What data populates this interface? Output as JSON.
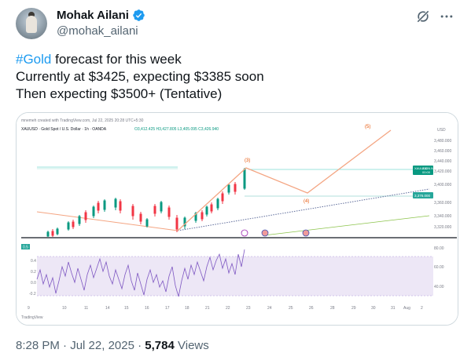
{
  "user": {
    "display_name": "Mohak Ailani",
    "handle": "@mohak_ailani",
    "verified_color": "#1d9bf0"
  },
  "header_icons": [
    "grok-icon",
    "more-icon"
  ],
  "tweet": {
    "hashtag": "#Gold",
    "line1_rest": " forecast for this week",
    "line2": "Currently at $3425, expecting $3385 soon",
    "line3": "Then expecting $3500+ (Tentative)"
  },
  "chart": {
    "created_note": "mnemeh created with TradingView.com, Jul 22, 2025 20:28 UTC+5:30",
    "symbol_line": "XAUUSD · Gold Spot / U.S. Dollar · 1h · OANDA",
    "ohlc": "O3,412.425  H3,427.805  L3,405.095  C3,426.940",
    "currency": "USD",
    "price_ticks": [
      "3,480.000",
      "3,460.000",
      "3,440.000",
      "3,420.000",
      "3,400.000",
      "3,380.000",
      "3,360.000",
      "3,340.000",
      "3,320.000"
    ],
    "price_badge_symbol": "XAUUSD",
    "price_badge_value": "3,426.940",
    "price_badge_sub": "00:00",
    "level_badge": "3,376.000",
    "wave_labels": [
      "(3)",
      "(4)",
      "(5)"
    ],
    "rsi_label": "0.5",
    "rsi_left_ticks": [
      "0.4",
      "0.2",
      "0.0",
      "-0.2"
    ],
    "rsi_right_ticks": [
      "80.00",
      "60.00",
      "40.00"
    ],
    "date_ticks": [
      "9",
      "10",
      "11",
      "14",
      "15",
      "16",
      "17",
      "18",
      "21",
      "22",
      "23",
      "24",
      "25",
      "26",
      "28",
      "29",
      "30",
      "31",
      "Aug",
      "2"
    ],
    "watermark": "TradingView",
    "accent_line": "#f4a582",
    "level_line": "#26a69a"
  },
  "meta": {
    "time": "8:28 PM",
    "date": "Jul 22, 2025",
    "separator": "·",
    "views_count": "5,784",
    "views_label": "Views"
  }
}
